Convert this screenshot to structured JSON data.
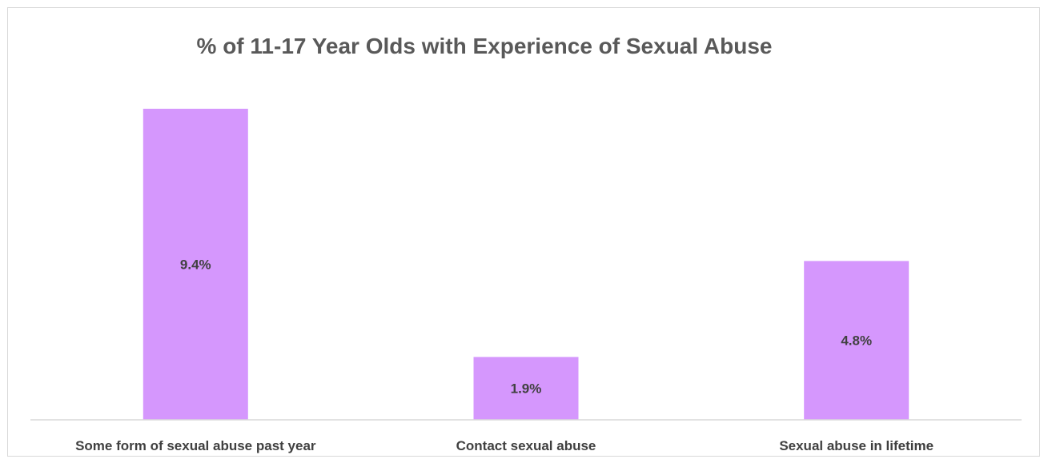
{
  "chart_data": {
    "type": "bar",
    "title": "% of 11-17 Year Olds with Experience of Sexual Abuse",
    "categories": [
      "Some form of sexual abuse past year",
      "Contact sexual abuse",
      "Sexual abuse in lifetime"
    ],
    "values": [
      9.4,
      1.9,
      4.8
    ],
    "data_labels": [
      "9.4%",
      "1.9%",
      "4.8%"
    ],
    "unit": "%",
    "ylim": [
      0,
      9.4
    ],
    "grid": false,
    "legend": "none",
    "colors": {
      "bar": "#d597fd",
      "axis": "#d9d9d9",
      "title": "#595959",
      "label": "#404040"
    }
  }
}
